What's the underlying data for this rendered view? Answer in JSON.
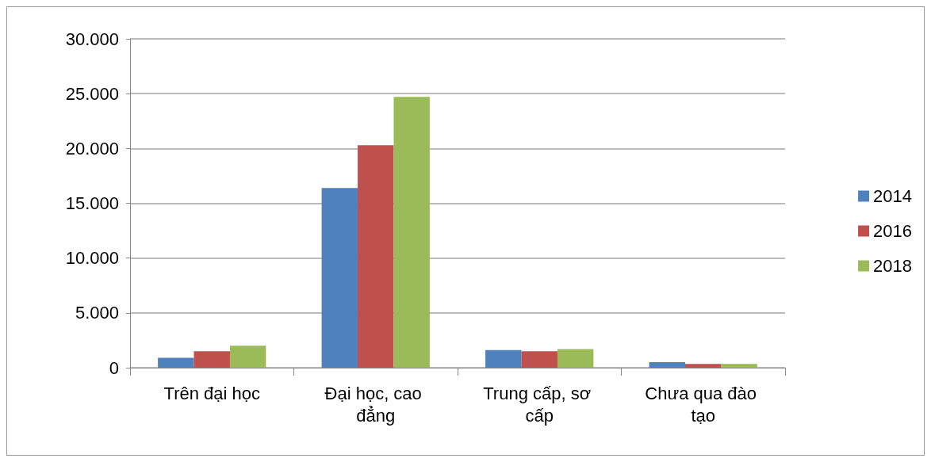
{
  "chart_data": {
    "type": "bar",
    "categories": [
      "Trên đại học",
      "Đại học, cao đẳng",
      "Trung cấp, sơ cấp",
      "Chưa qua đào tạo"
    ],
    "series": [
      {
        "name": "2014",
        "color": "#4f81bd",
        "values": [
          900,
          16400,
          1600,
          500
        ]
      },
      {
        "name": "2016",
        "color": "#c0504d",
        "values": [
          1500,
          20300,
          1500,
          350
        ]
      },
      {
        "name": "2018",
        "color": "#9bbb59",
        "values": [
          2000,
          24700,
          1700,
          350
        ]
      }
    ],
    "ylim": [
      0,
      30000
    ],
    "yticks": [
      {
        "value": 0,
        "label": "0"
      },
      {
        "value": 5000,
        "label": "5.000"
      },
      {
        "value": 10000,
        "label": "10.000"
      },
      {
        "value": 15000,
        "label": "15.000"
      },
      {
        "value": 20000,
        "label": "20.000"
      },
      {
        "value": 25000,
        "label": "25.000"
      },
      {
        "value": 30000,
        "label": "30.000"
      }
    ],
    "grid": "y",
    "legend": "right"
  }
}
